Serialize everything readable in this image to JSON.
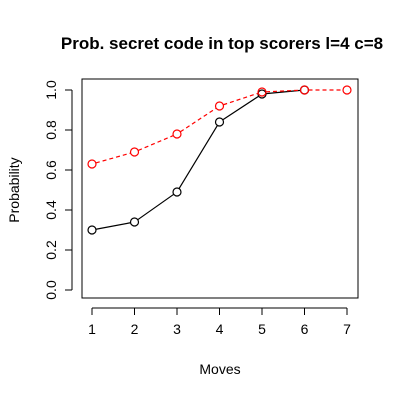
{
  "chart_data": {
    "type": "line",
    "title": "Prob. secret code in top scorers l=4 c=8",
    "xlabel": "Moves",
    "ylabel": "Probability",
    "xlim": [
      1,
      7
    ],
    "ylim": [
      0,
      1
    ],
    "x_ticks": [
      "1",
      "2",
      "3",
      "4",
      "5",
      "6",
      "7"
    ],
    "y_ticks": [
      "0.0",
      "0.2",
      "0.4",
      "0.6",
      "0.8",
      "1.0"
    ],
    "grid": false,
    "legend": "none",
    "series": [
      {
        "color": "#000000",
        "line_style": "solid",
        "marker": "open-circle",
        "x": [
          1,
          2,
          3,
          4,
          5,
          6
        ],
        "values": [
          0.3,
          0.34,
          0.49,
          0.84,
          0.98,
          1.0
        ]
      },
      {
        "color": "#ff0000",
        "line_style": "dashed",
        "marker": "open-circle",
        "x": [
          1,
          2,
          3,
          4,
          5,
          6,
          7
        ],
        "values": [
          0.63,
          0.69,
          0.78,
          0.92,
          0.99,
          1.0,
          1.0
        ]
      }
    ]
  }
}
